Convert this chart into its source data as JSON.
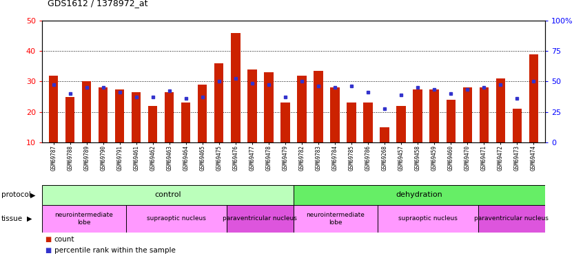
{
  "title": "GDS1612 / 1378972_at",
  "samples": [
    "GSM69787",
    "GSM69788",
    "GSM69789",
    "GSM69790",
    "GSM69791",
    "GSM69461",
    "GSM69462",
    "GSM69463",
    "GSM69464",
    "GSM69465",
    "GSM69475",
    "GSM69476",
    "GSM69477",
    "GSM69478",
    "GSM69479",
    "GSM69782",
    "GSM69783",
    "GSM69784",
    "GSM69785",
    "GSM69786",
    "GSM69268",
    "GSM69457",
    "GSM69458",
    "GSM69459",
    "GSM69460",
    "GSM69470",
    "GSM69471",
    "GSM69472",
    "GSM69473",
    "GSM69474"
  ],
  "count_values": [
    32,
    25,
    30,
    28,
    27.5,
    26.5,
    22,
    26.5,
    23,
    29,
    36,
    46,
    34,
    33,
    23,
    32,
    33.5,
    28,
    23,
    23,
    15,
    22,
    27.5,
    27.5,
    24,
    28,
    28,
    31,
    21,
    39
  ],
  "percentile_values": [
    29,
    26,
    28,
    28,
    26.5,
    25,
    25,
    27,
    24.5,
    25,
    30,
    31,
    29.5,
    29,
    25,
    30,
    28.5,
    28,
    28.5,
    26.5,
    21,
    25.5,
    28,
    27.5,
    26,
    27.5,
    28,
    29,
    24.5,
    30
  ],
  "ylim_left": [
    10,
    50
  ],
  "yticks_left": [
    10,
    20,
    30,
    40,
    50
  ],
  "ylim_right": [
    0,
    100
  ],
  "yticks_right": [
    0,
    25,
    50,
    75,
    100
  ],
  "bar_color": "#cc2200",
  "dot_color": "#3333cc",
  "background_color": "#ffffff",
  "bar_width": 0.55,
  "tissue_defs": [
    {
      "label": "neurointermediate\nlobe",
      "count": 5,
      "color": "#ff99ff"
    },
    {
      "label": "supraoptic nucleus",
      "count": 6,
      "color": "#ff99ff"
    },
    {
      "label": "paraventricular nucleus",
      "count": 4,
      "color": "#dd55dd"
    },
    {
      "label": "neurointermediate\nlobe",
      "count": 5,
      "color": "#ff99ff"
    },
    {
      "label": "supraoptic nucleus",
      "count": 6,
      "color": "#ff99ff"
    },
    {
      "label": "paraventricular nucleus",
      "count": 4,
      "color": "#dd55dd"
    }
  ]
}
